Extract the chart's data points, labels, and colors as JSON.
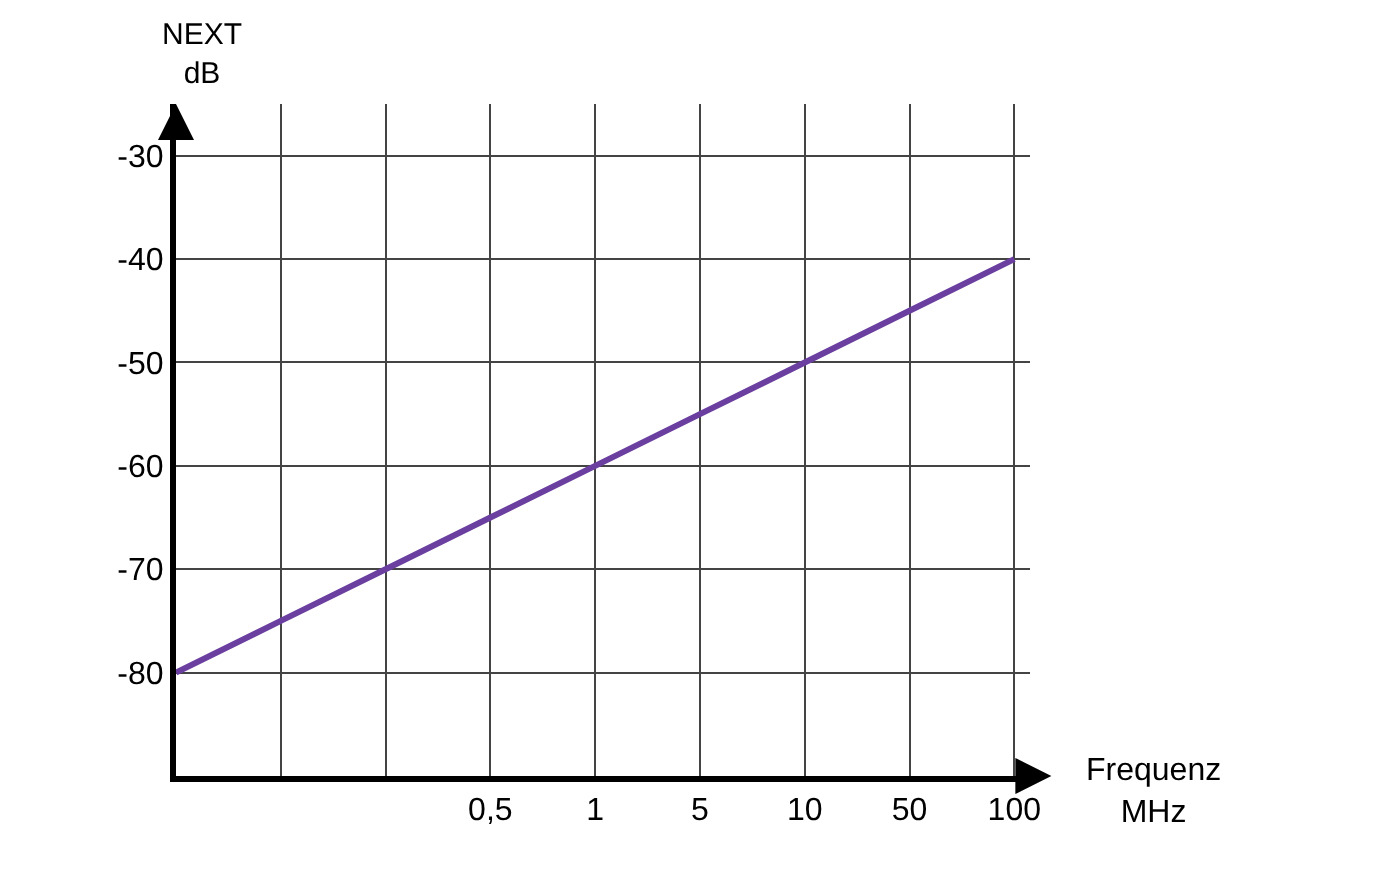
{
  "chart_data": {
    "type": "line",
    "xlabel": "Frequenz\nMHz",
    "ylabel": "NEXT\ndB",
    "categories": [
      null,
      null,
      null,
      "0,5",
      "1",
      "5",
      "10",
      "50",
      "100"
    ],
    "series": [
      {
        "color": "#6b3fa0",
        "values": [
          -80,
          -75,
          -70,
          -65,
          -60,
          -55,
          -50,
          -45,
          -40
        ]
      }
    ],
    "ylim": [
      -90,
      -25
    ],
    "yticks": [
      -80,
      -70,
      -60,
      -50,
      -40,
      -30
    ],
    "grid": true,
    "marker": "none",
    "line_style": "solid"
  }
}
